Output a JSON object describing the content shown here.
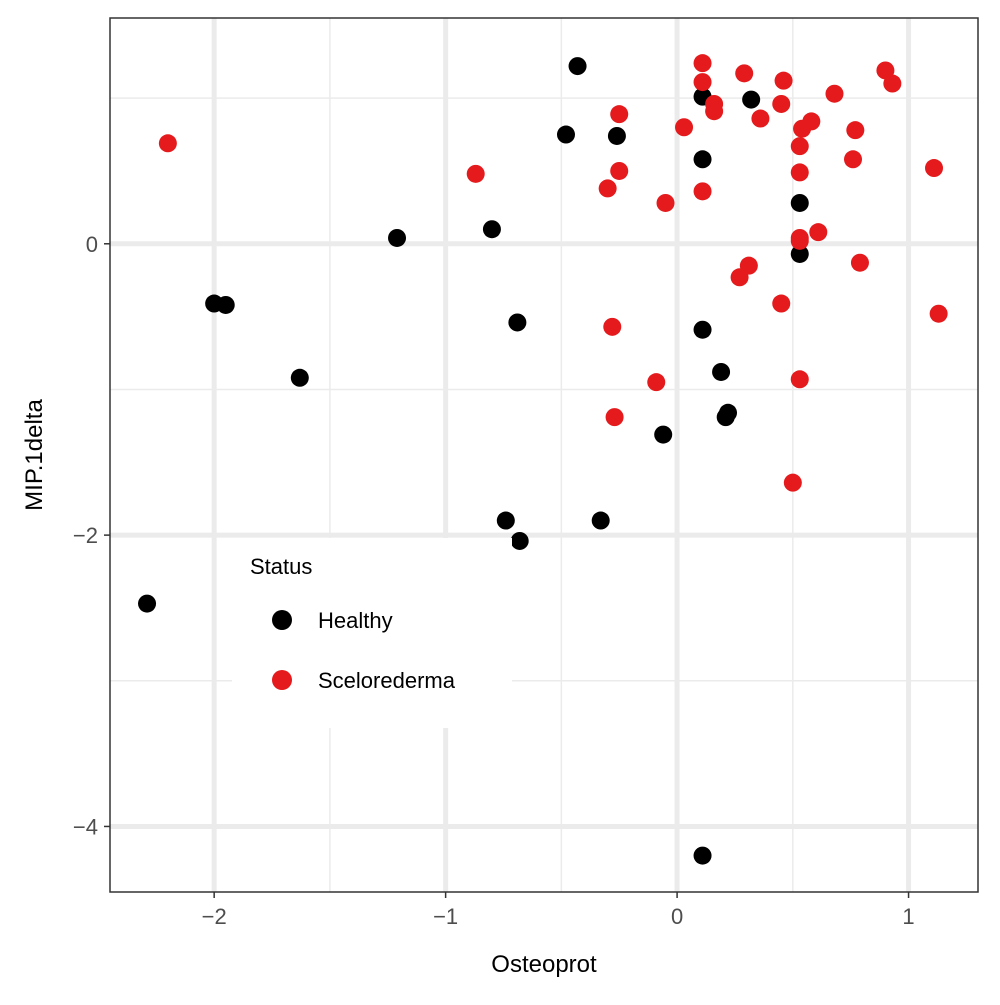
{
  "chart_data": {
    "type": "scatter",
    "xlabel": "Osteoprot",
    "ylabel": "MIP.1delta",
    "xlim": [
      -2.45,
      1.3
    ],
    "ylim": [
      -4.45,
      1.55
    ],
    "x_ticks": [
      -2,
      -1,
      0,
      1
    ],
    "x_tick_labels": [
      "−2",
      "−1",
      "0",
      "1"
    ],
    "y_ticks": [
      -4,
      -2,
      0
    ],
    "y_tick_labels": [
      "−4",
      "−2",
      "0"
    ],
    "grid": true,
    "legend": {
      "title": "Status",
      "placement": "lower-left-inside",
      "entries": [
        {
          "label": "Healthy",
          "color": "#000000"
        },
        {
          "label": "Scelorederma",
          "color": "#e41a1c"
        }
      ]
    },
    "series": [
      {
        "name": "Healthy",
        "color": "#000000",
        "points": [
          [
            -0.43,
            1.22
          ],
          [
            -0.48,
            0.75
          ],
          [
            -0.26,
            0.74
          ],
          [
            0.11,
            1.01
          ],
          [
            0.32,
            0.99
          ],
          [
            0.11,
            0.58
          ],
          [
            0.53,
            0.28
          ],
          [
            0.53,
            -0.07
          ],
          [
            -0.8,
            0.1
          ],
          [
            -1.21,
            0.04
          ],
          [
            -2.0,
            -0.41
          ],
          [
            -1.95,
            -0.42
          ],
          [
            -0.69,
            -0.54
          ],
          [
            0.11,
            -0.59
          ],
          [
            -1.63,
            -0.92
          ],
          [
            0.19,
            -0.88
          ],
          [
            0.22,
            -1.16
          ],
          [
            0.21,
            -1.19
          ],
          [
            -0.06,
            -1.31
          ],
          [
            -0.74,
            -1.9
          ],
          [
            -0.33,
            -1.9
          ],
          [
            -0.68,
            -2.04
          ],
          [
            -2.29,
            -2.47
          ],
          [
            0.11,
            -4.2
          ]
        ]
      },
      {
        "name": "Scelorederma",
        "color": "#e41a1c",
        "points": [
          [
            -2.2,
            0.69
          ],
          [
            -0.87,
            0.48
          ],
          [
            -0.25,
            0.89
          ],
          [
            -0.25,
            0.5
          ],
          [
            -0.3,
            0.38
          ],
          [
            -0.05,
            0.28
          ],
          [
            0.03,
            0.8
          ],
          [
            0.11,
            1.24
          ],
          [
            0.11,
            1.11
          ],
          [
            0.16,
            0.96
          ],
          [
            0.16,
            0.91
          ],
          [
            0.29,
            1.17
          ],
          [
            0.36,
            0.86
          ],
          [
            0.46,
            1.12
          ],
          [
            0.45,
            0.96
          ],
          [
            0.11,
            0.36
          ],
          [
            0.54,
            0.79
          ],
          [
            0.53,
            0.67
          ],
          [
            0.53,
            0.49
          ],
          [
            0.58,
            0.84
          ],
          [
            0.68,
            1.03
          ],
          [
            0.77,
            0.78
          ],
          [
            0.76,
            0.58
          ],
          [
            0.9,
            1.19
          ],
          [
            0.93,
            1.1
          ],
          [
            1.11,
            0.52
          ],
          [
            0.53,
            0.04
          ],
          [
            0.53,
            0.02
          ],
          [
            0.61,
            0.08
          ],
          [
            0.31,
            -0.15
          ],
          [
            0.27,
            -0.23
          ],
          [
            0.45,
            -0.41
          ],
          [
            0.79,
            -0.13
          ],
          [
            1.13,
            -0.48
          ],
          [
            -0.28,
            -0.57
          ],
          [
            -0.09,
            -0.95
          ],
          [
            0.53,
            -0.93
          ],
          [
            -0.27,
            -1.19
          ],
          [
            0.5,
            -1.64
          ]
        ]
      }
    ]
  }
}
